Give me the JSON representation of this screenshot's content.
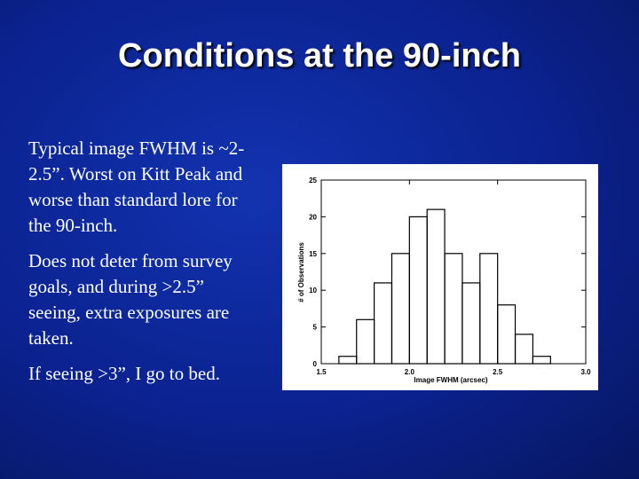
{
  "slide": {
    "title": "Conditions at the 90-inch",
    "paragraphs": [
      "Typical image FWHM is ~2-2.5”.  Worst on Kitt Peak and worse than standard lore for the 90-inch.",
      "Does not deter from survey goals, and during >2.5” seeing, extra exposures are taken.",
      "If seeing >3”, I go to bed."
    ]
  },
  "chart_data": {
    "type": "histogram",
    "x_label": "Image FWHM (arcsec)",
    "y_label": "# of Observations",
    "bins": [
      1.6,
      1.7,
      1.8,
      1.9,
      2.0,
      2.1,
      2.2,
      2.3,
      2.4,
      2.5,
      2.6,
      2.7,
      2.8
    ],
    "counts": [
      1,
      6,
      11,
      15,
      20,
      21,
      15,
      11,
      15,
      8,
      4,
      1
    ],
    "color": "#000000",
    "xlim": [
      1.5,
      3.0
    ],
    "xticks": [
      1.5,
      {
        "value": 2,
        "label": "2.0"
      },
      2.5,
      {
        "value": 3,
        "label": "3.0"
      }
    ],
    "ylim": [
      0,
      25
    ],
    "yticks": [
      0,
      5,
      10,
      15,
      20,
      25
    ]
  }
}
